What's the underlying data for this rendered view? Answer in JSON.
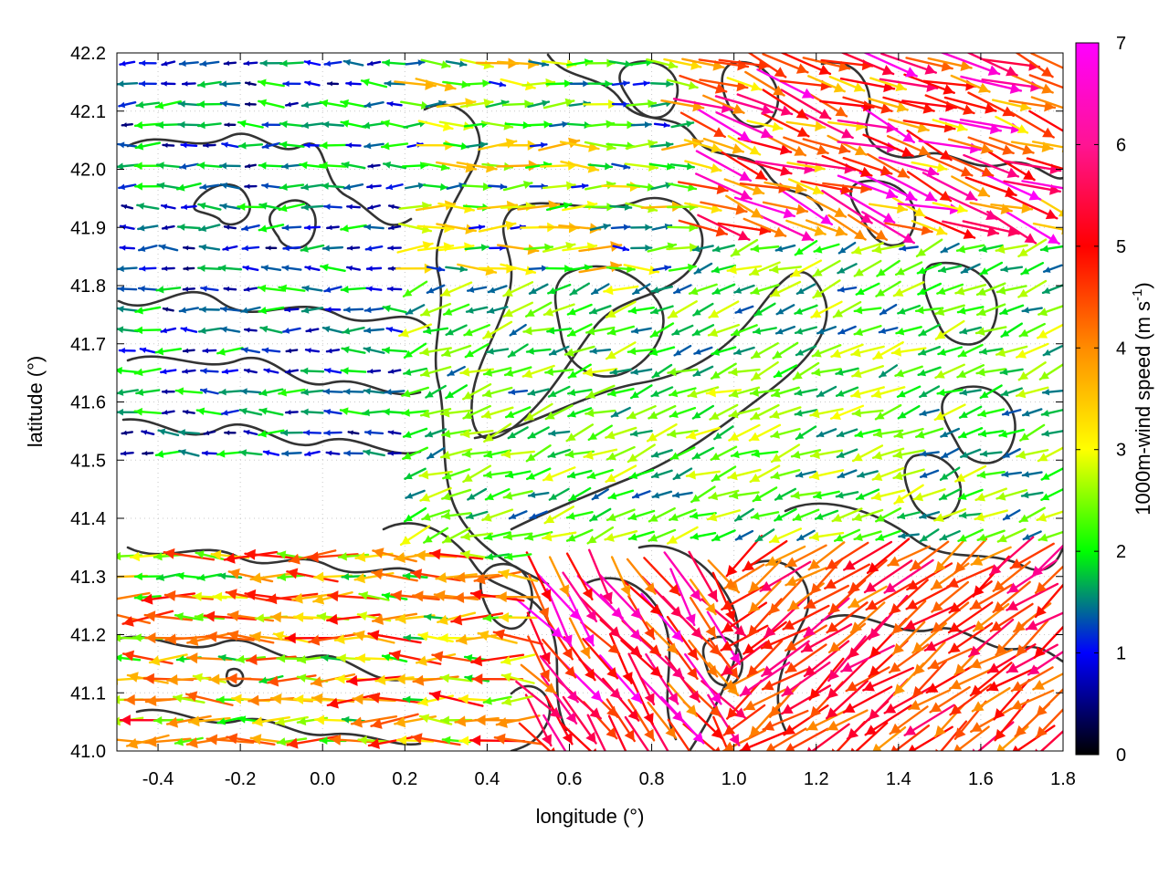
{
  "chart_data": {
    "type": "quiver",
    "title": "",
    "xlabel": "longitude (°)",
    "ylabel": "latitude (°)",
    "xlim": [
      -0.5,
      1.8
    ],
    "ylim": [
      41.0,
      42.2
    ],
    "xticks": [
      -0.4,
      -0.2,
      0.0,
      0.2,
      0.4,
      0.6,
      0.8,
      1.0,
      1.2,
      1.4,
      1.6,
      1.8
    ],
    "xtick_labels": [
      "-0.4",
      "-0.2",
      "0.0",
      "0.2",
      "0.4",
      "0.6",
      "0.8",
      "1.0",
      "1.2",
      "1.4",
      "1.6",
      "1.8"
    ],
    "yticks": [
      41.0,
      41.1,
      41.2,
      41.3,
      41.4,
      41.5,
      41.6,
      41.7,
      41.8,
      41.9,
      42.0,
      42.1,
      42.2
    ],
    "ytick_labels": [
      "41.0",
      "41.1",
      "41.2",
      "41.3",
      "41.4",
      "41.5",
      "41.6",
      "41.7",
      "41.8",
      "41.9",
      "42.0",
      "42.1",
      "42.2"
    ],
    "grid": true,
    "colorbar": {
      "label": "1000m-wind speed (m s",
      "label_sup": "-1",
      "label_end": ")",
      "range": [
        0,
        7
      ],
      "ticks": [
        0,
        1,
        2,
        3,
        4,
        5,
        6,
        7
      ],
      "tick_labels": [
        "0",
        "1",
        "2",
        "3",
        "4",
        "5",
        "6",
        "7"
      ],
      "colormap": [
        "#000000",
        "#0000ff",
        "#00ff00",
        "#ffff00",
        "#ff8c00",
        "#ff0000",
        "#ff00ff"
      ]
    },
    "wind_regions": [
      {
        "area": "north-west",
        "lon": [
          -0.5,
          0.2
        ],
        "lat": [
          41.5,
          42.2
        ],
        "direction": "west",
        "speed_range": [
          0.5,
          2.5
        ]
      },
      {
        "area": "north-central",
        "lon": [
          0.2,
          0.9
        ],
        "lat": [
          41.8,
          42.2
        ],
        "direction": "east",
        "speed_range": [
          1.0,
          4.5
        ]
      },
      {
        "area": "north-east",
        "lon": [
          0.9,
          1.8
        ],
        "lat": [
          41.9,
          42.2
        ],
        "direction": "east-south-east",
        "speed_range": [
          3.5,
          7.0
        ]
      },
      {
        "area": "central",
        "lon": [
          0.2,
          1.8
        ],
        "lat": [
          41.35,
          41.9
        ],
        "direction": "west-south-west",
        "speed_range": [
          1.5,
          3.5
        ]
      },
      {
        "area": "south-west",
        "lon": [
          -0.5,
          0.5
        ],
        "lat": [
          41.0,
          41.35
        ],
        "direction": "west",
        "speed_range": [
          2.0,
          6.0
        ]
      },
      {
        "area": "south-central",
        "lon": [
          0.4,
          1.0
        ],
        "lat": [
          41.0,
          41.3
        ],
        "direction": "south-east",
        "speed_range": [
          4.5,
          7.0
        ]
      },
      {
        "area": "south-east",
        "lon": [
          1.0,
          1.8
        ],
        "lat": [
          41.0,
          41.35
        ],
        "direction": "south-west",
        "speed_range": [
          4.5,
          6.5
        ]
      }
    ]
  }
}
